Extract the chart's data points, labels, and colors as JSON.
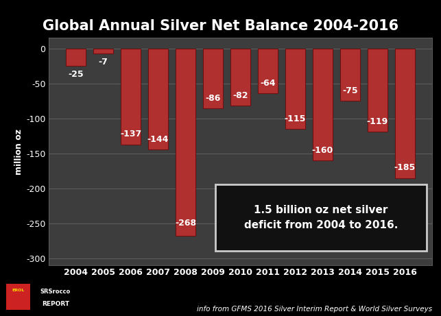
{
  "years": [
    "2004",
    "2005",
    "2006",
    "2007",
    "2008",
    "2009",
    "2010",
    "2011",
    "2012",
    "2013",
    "2014",
    "2015",
    "2016"
  ],
  "values": [
    -25,
    -7,
    -137,
    -144,
    -268,
    -86,
    -82,
    -64,
    -115,
    -160,
    -75,
    -119,
    -185
  ],
  "bar_color": "#b03030",
  "bar_edge_color": "#701010",
  "background_color": "#000000",
  "plot_bg_color": "#3d3d3d",
  "grid_color": "#666666",
  "text_color": "white",
  "title": "Global Annual Silver Net Balance 2004-2016",
  "ylabel": "million oz",
  "ylim": [
    -310,
    15
  ],
  "yticks": [
    0,
    -50,
    -100,
    -150,
    -200,
    -250,
    -300
  ],
  "annotation_text": "1.5 billion oz net silver\ndeficit from 2004 to 2016.",
  "annotation_box_facecolor": "#111111",
  "annotation_box_edgecolor": "#cccccc",
  "annotation_text_color": "white",
  "footer_text": "info from GFMS 2016 Silver Interim Report & World Silver Surveys",
  "title_fontsize": 15,
  "bar_label_fontsize": 9,
  "tick_fontsize": 9,
  "ylabel_fontsize": 9,
  "footer_fontsize": 7.5,
  "annotation_fontsize": 11
}
